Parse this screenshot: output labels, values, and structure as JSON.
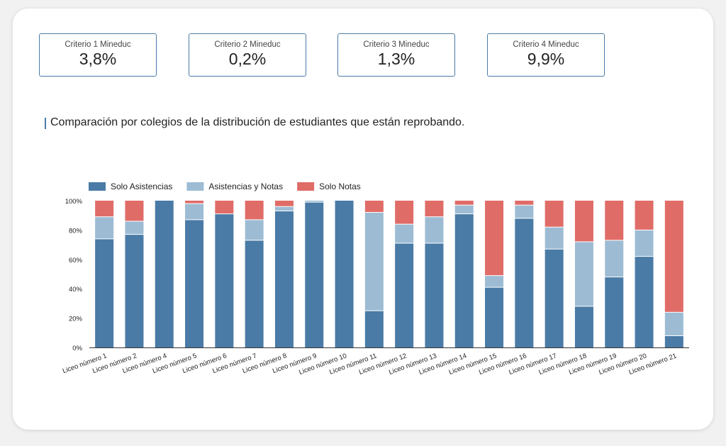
{
  "kpis": [
    {
      "label": "Criterio 1 Mineduc",
      "value": "3,8%"
    },
    {
      "label": "Criterio 2 Mineduc",
      "value": "0,2%"
    },
    {
      "label": "Criterio 3 Mineduc",
      "value": "1,3%"
    },
    {
      "label": "Criterio 4 Mineduc",
      "value": "9,9%"
    }
  ],
  "colors": {
    "solo_asistencias": "#4a7ba6",
    "asistencias_y_notas": "#9dbcd4",
    "solo_notas": "#e06c68",
    "accent": "#4a7ba6"
  },
  "chart_data": {
    "type": "bar",
    "stacked": true,
    "title": "Comparación por colegios de la distribución de estudiantes que están reprobando.",
    "categories": [
      "Liceo número 1",
      "Liceo número 2",
      "Liceo número 4",
      "Liceo número 5",
      "Liceo número 6",
      "Liceo número 7",
      "Liceo número 8",
      "Liceo número 9",
      "Liceo número 10",
      "Liceo número 11",
      "Liceo número 12",
      "Liceo número 13",
      "Liceo número 14",
      "Liceo número 15",
      "Liceo número 16",
      "Liceo número 17",
      "Liceo número 18",
      "Liceo número 19",
      "Liceo número 20",
      "Liceo número 21"
    ],
    "series": [
      {
        "name": "Solo Asistencias",
        "values": [
          74,
          77,
          100,
          87,
          91,
          73,
          93,
          99,
          100,
          25,
          71,
          71,
          91,
          41,
          88,
          67,
          28,
          48,
          62,
          8
        ]
      },
      {
        "name": "Asistencias y Notas",
        "values": [
          15,
          9,
          0,
          11,
          0,
          14,
          3,
          1,
          0,
          67,
          13,
          18,
          6,
          8,
          9,
          15,
          44,
          25,
          18,
          16
        ]
      },
      {
        "name": "Solo Notas",
        "values": [
          11,
          14,
          0,
          2,
          9,
          13,
          4,
          0,
          0,
          8,
          16,
          11,
          3,
          51,
          3,
          18,
          28,
          27,
          20,
          76
        ]
      }
    ],
    "ylim": [
      0,
      100
    ],
    "yticks": [
      "0%",
      "20%",
      "40%",
      "60%",
      "80%",
      "100%"
    ],
    "legend_position": "top-left",
    "grid": false
  }
}
